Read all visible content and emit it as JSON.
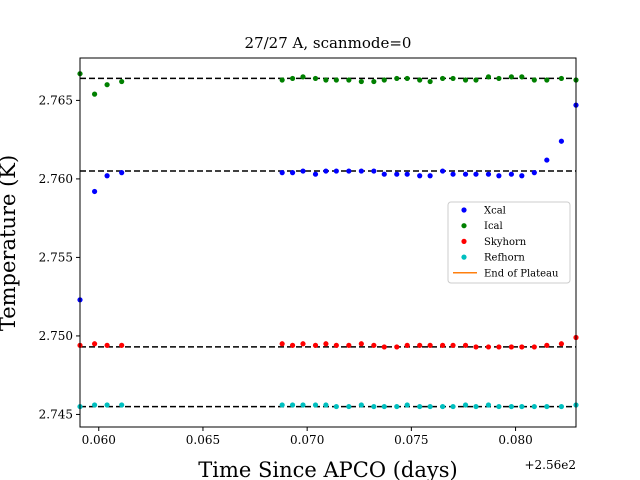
{
  "chart_data": {
    "type": "scatter",
    "title": "27/27 A, scanmode=0",
    "xlabel": "Time Since APCO (days)",
    "ylabel": "Temperature (K)",
    "x_offset_label": "+2.56e2",
    "xlim": [
      0.0591,
      0.0829
    ],
    "ylim": [
      2.7442,
      2.7677
    ],
    "x_ticks": [
      0.06,
      0.065,
      0.07,
      0.075,
      0.08
    ],
    "x_tick_labels": [
      "0.060",
      "0.065",
      "0.070",
      "0.075",
      "0.080"
    ],
    "y_ticks": [
      2.745,
      2.75,
      2.755,
      2.76,
      2.765
    ],
    "y_tick_labels": [
      "2.745",
      "2.750",
      "2.755",
      "2.760",
      "2.765"
    ],
    "grid": false,
    "legend_position": "center-right",
    "legend": [
      {
        "name": "Xcal",
        "color": "#0000ff",
        "marker": "dot"
      },
      {
        "name": "Ical",
        "color": "#008000",
        "marker": "dot"
      },
      {
        "name": "Skyhorn",
        "color": "#ff0000",
        "marker": "dot"
      },
      {
        "name": "Refhorn",
        "color": "#00bfbf",
        "marker": "dot"
      },
      {
        "name": "End of Plateau",
        "color": "#ff7f0e",
        "marker": "line"
      }
    ],
    "reference_lines": [
      2.7664,
      2.7605,
      2.7493,
      2.7455
    ],
    "series": [
      {
        "name": "Xcal",
        "color": "#0000ff",
        "x": [
          0.0591,
          0.0598,
          0.0604,
          0.0611,
          0.0688,
          0.0693,
          0.0698,
          0.0704,
          0.0709,
          0.0714,
          0.072,
          0.0726,
          0.0732,
          0.0737,
          0.0743,
          0.0748,
          0.0754,
          0.0759,
          0.0765,
          0.077,
          0.0776,
          0.0781,
          0.0787,
          0.0792,
          0.0798,
          0.0803,
          0.0809,
          0.0815,
          0.0822,
          0.0829
        ],
        "y": [
          2.7523,
          2.7592,
          2.7602,
          2.7604,
          2.7604,
          2.7604,
          2.7605,
          2.7603,
          2.7605,
          2.7605,
          2.7605,
          2.7605,
          2.7605,
          2.7603,
          2.7603,
          2.7603,
          2.7602,
          2.7602,
          2.7605,
          2.7603,
          2.7603,
          2.7603,
          2.7603,
          2.7602,
          2.7603,
          2.7602,
          2.7604,
          2.7612,
          2.7624,
          2.7647
        ]
      },
      {
        "name": "Ical",
        "color": "#008000",
        "x": [
          0.0591,
          0.0598,
          0.0604,
          0.0611,
          0.0688,
          0.0693,
          0.0698,
          0.0704,
          0.0709,
          0.0714,
          0.072,
          0.0726,
          0.0732,
          0.0737,
          0.0743,
          0.0748,
          0.0754,
          0.0759,
          0.0765,
          0.077,
          0.0776,
          0.0781,
          0.0787,
          0.0792,
          0.0798,
          0.0803,
          0.0809,
          0.0815,
          0.0822,
          0.0829
        ],
        "y": [
          2.7667,
          2.7654,
          2.766,
          2.7662,
          2.7663,
          2.7664,
          2.7665,
          2.7664,
          2.7663,
          2.7663,
          2.7663,
          2.7662,
          2.7662,
          2.7663,
          2.7664,
          2.7664,
          2.7663,
          2.7662,
          2.7664,
          2.7664,
          2.7663,
          2.7663,
          2.7665,
          2.7664,
          2.7665,
          2.7665,
          2.7663,
          2.7663,
          2.7664,
          2.7663
        ]
      },
      {
        "name": "Skyhorn",
        "color": "#ff0000",
        "x": [
          0.0591,
          0.0598,
          0.0604,
          0.0611,
          0.0688,
          0.0693,
          0.0698,
          0.0704,
          0.0709,
          0.0714,
          0.072,
          0.0726,
          0.0732,
          0.0737,
          0.0743,
          0.0748,
          0.0754,
          0.0759,
          0.0765,
          0.077,
          0.0776,
          0.0781,
          0.0787,
          0.0792,
          0.0798,
          0.0803,
          0.0809,
          0.0815,
          0.0822,
          0.0829
        ],
        "y": [
          2.7494,
          2.7495,
          2.7494,
          2.7494,
          2.7495,
          2.7494,
          2.7495,
          2.7494,
          2.7495,
          2.7494,
          2.7494,
          2.7495,
          2.7494,
          2.7493,
          2.7493,
          2.7494,
          2.7494,
          2.7494,
          2.7494,
          2.7494,
          2.7494,
          2.7493,
          2.7493,
          2.7493,
          2.7493,
          2.7493,
          2.7493,
          2.7494,
          2.7495,
          2.7499
        ]
      },
      {
        "name": "Refhorn",
        "color": "#00bfbf",
        "x": [
          0.0591,
          0.0598,
          0.0604,
          0.0611,
          0.0688,
          0.0693,
          0.0698,
          0.0704,
          0.0709,
          0.0714,
          0.072,
          0.0726,
          0.0732,
          0.0737,
          0.0743,
          0.0748,
          0.0754,
          0.0759,
          0.0765,
          0.077,
          0.0776,
          0.0781,
          0.0787,
          0.0792,
          0.0798,
          0.0803,
          0.0809,
          0.0815,
          0.0822,
          0.0829
        ],
        "y": [
          2.7455,
          2.7456,
          2.7456,
          2.7456,
          2.7456,
          2.7456,
          2.7456,
          2.7456,
          2.7456,
          2.7455,
          2.7455,
          2.7456,
          2.7455,
          2.7455,
          2.7455,
          2.7456,
          2.7455,
          2.7455,
          2.7455,
          2.7455,
          2.7456,
          2.7455,
          2.7456,
          2.7455,
          2.7455,
          2.7455,
          2.7455,
          2.7455,
          2.7455,
          2.7456
        ]
      }
    ]
  }
}
